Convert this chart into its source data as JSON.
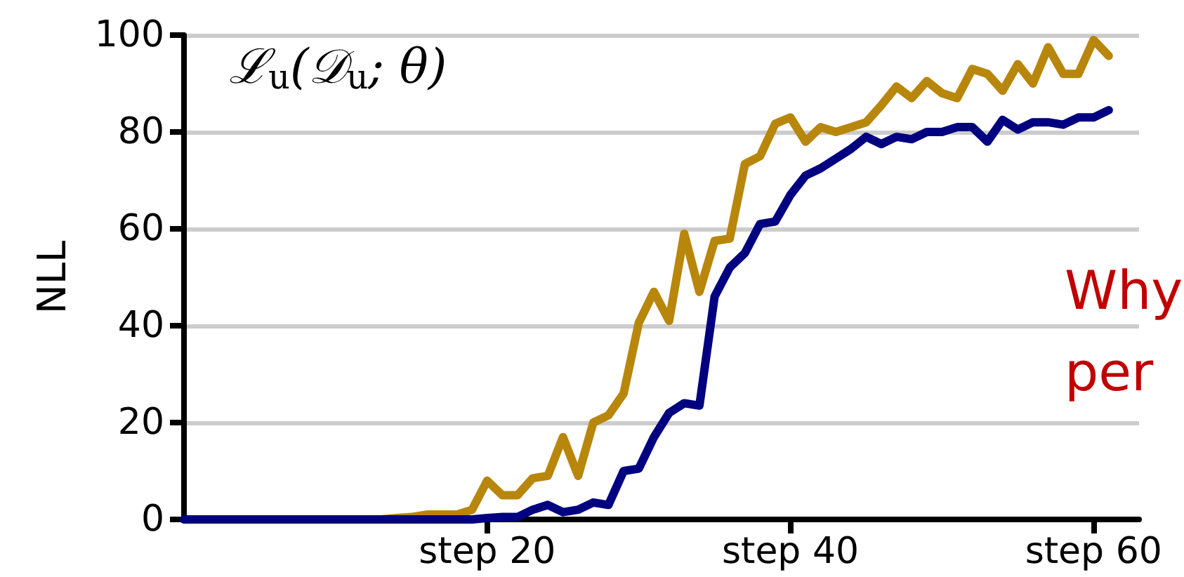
{
  "chart_data": {
    "type": "line",
    "title": "ℒ$_{u}$(𝒟$_{u}$; θ)",
    "ylabel": "NLL",
    "categories": [
      null,
      null,
      null,
      null,
      null,
      null,
      null,
      null,
      null,
      null,
      null,
      null,
      null,
      null,
      null,
      null,
      null,
      null,
      null,
      null,
      "step 20",
      null,
      null,
      null,
      null,
      null,
      null,
      null,
      null,
      null,
      null,
      null,
      null,
      null,
      null,
      null,
      null,
      null,
      null,
      null,
      "step 40",
      null,
      null,
      null,
      null,
      null,
      null,
      null,
      null,
      null,
      null,
      null,
      null,
      null,
      null,
      null,
      null,
      null,
      null,
      null,
      "step 60",
      null,
      null,
      null
    ],
    "series": [
      {
        "color": "#b8860b",
        "values": [
          null,
          null,
          null,
          null,
          null,
          null,
          null,
          null,
          null,
          null,
          null,
          null,
          0,
          0,
          0.3,
          0.5,
          1,
          1,
          1,
          2,
          8,
          5,
          5,
          8.5,
          9,
          17,
          9,
          20,
          21.5,
          26,
          40.6,
          47,
          41,
          59,
          47,
          57.5,
          58,
          73.4,
          75,
          81.7,
          83,
          78,
          81,
          80,
          81,
          82,
          85.5,
          89.4,
          87,
          90.5,
          88,
          87,
          93,
          92,
          88.5,
          94,
          90,
          97.5,
          92,
          92,
          99,
          95.7,
          null,
          null
        ]
      },
      {
        "color": "#000080",
        "values": [
          0,
          0,
          0,
          0,
          0,
          0,
          0,
          0,
          0,
          0,
          0,
          0,
          0,
          0,
          0,
          0,
          0,
          0,
          0,
          0,
          0.3,
          0.5,
          0.5,
          2,
          3,
          1.5,
          2,
          3.5,
          3,
          10,
          10.5,
          17,
          22,
          24,
          23.5,
          46,
          52,
          55,
          61,
          61.5,
          67,
          71,
          72.5,
          74.5,
          76.5,
          79,
          77.5,
          79,
          78.5,
          80,
          80,
          81,
          81,
          78,
          82.5,
          80.5,
          82,
          82,
          81.5,
          83,
          83,
          84.5,
          null,
          null
        ]
      }
    ],
    "ylim": [
      0,
      100
    ],
    "yticks": [
      0,
      20,
      40,
      60,
      80,
      100
    ],
    "grid": "y",
    "marker": "none",
    "line_style": "solid",
    "annotations": [
      "Why",
      "per"
    ]
  }
}
